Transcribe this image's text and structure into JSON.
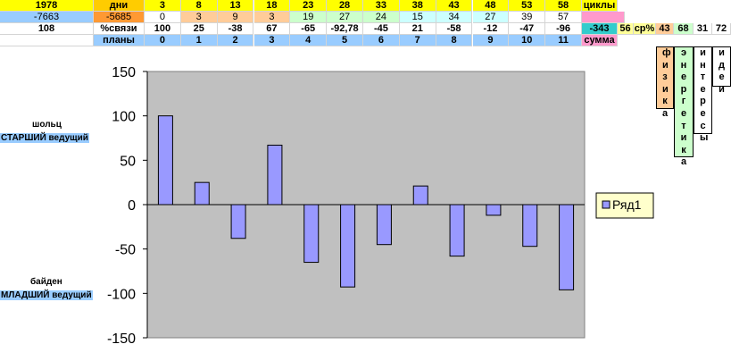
{
  "table": {
    "rows": [
      [
        "1978",
        "дни",
        3,
        8,
        13,
        18,
        23,
        28,
        33,
        38,
        43,
        48,
        53,
        58,
        "циклы"
      ],
      [
        -7663,
        -5685,
        0,
        3,
        9,
        3,
        19,
        27,
        24,
        15,
        34,
        27,
        39,
        57
      ],
      [
        108,
        "%связи",
        100,
        25,
        -38,
        67,
        -65,
        "-92,78",
        -45,
        21,
        -58,
        -12,
        -47,
        -96,
        -343,
        56,
        "ср%",
        43,
        68,
        31,
        72
      ],
      [
        "",
        "планы",
        0,
        1,
        2,
        3,
        4,
        5,
        6,
        7,
        8,
        9,
        10,
        11,
        "сумма"
      ]
    ],
    "vertical_labels": [
      "физика",
      "энергетика",
      "интересы",
      "идеи"
    ]
  },
  "left_labels": [
    {
      "name": "шольц",
      "role": "СТАРШИЙ ведущий"
    },
    {
      "name": "байден",
      "role": "МЛАДШИЙ ведущий"
    }
  ],
  "chart_data": {
    "type": "bar",
    "series": [
      {
        "name": "Ряд1",
        "color": "#9999ff",
        "values": [
          100,
          25,
          -38,
          67,
          -65,
          -92.78,
          -45,
          21,
          -58,
          -12,
          -47,
          -96
        ]
      }
    ],
    "ylim": [
      -150,
      150
    ],
    "yticks": [
      -150,
      -100,
      -50,
      0,
      50,
      100,
      150
    ],
    "legend": "right"
  }
}
